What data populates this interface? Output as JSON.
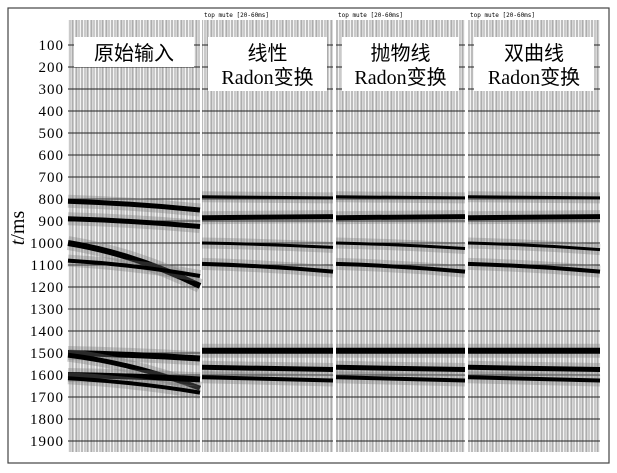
{
  "y_axis": {
    "label_t": "t",
    "label_unit": "/ms",
    "ticks": [
      100,
      200,
      300,
      400,
      500,
      600,
      700,
      800,
      900,
      1000,
      1100,
      1200,
      1300,
      1400,
      1500,
      1600,
      1700,
      1800,
      1900
    ]
  },
  "panels": [
    {
      "title_lines": [
        "原始输入"
      ]
    },
    {
      "header": "top mute [20-60ms]",
      "title_lines": [
        "线性",
        "Radon变换"
      ]
    },
    {
      "header": "top mute [20-60ms]",
      "title_lines": [
        "抛物线",
        "Radon变换"
      ]
    },
    {
      "header": "top mute [20-60ms]",
      "title_lines": [
        "双曲线",
        "Radon变换"
      ]
    }
  ]
}
